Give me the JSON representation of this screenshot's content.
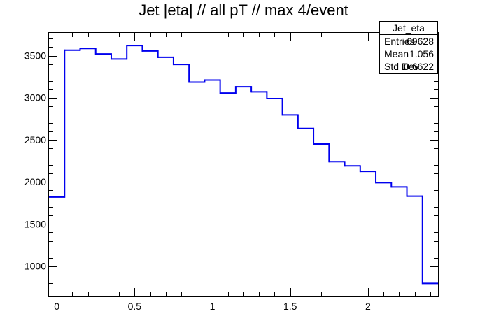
{
  "chart_data": {
    "type": "histogram",
    "title": "Jet |eta| // all pT // max 4/event",
    "xlabel": "",
    "ylabel": "",
    "xlim": [
      -0.05,
      2.45
    ],
    "ylim": [
      640,
      3770
    ],
    "bin_edges": [
      -0.05,
      0.05,
      0.15,
      0.25,
      0.35,
      0.45,
      0.55,
      0.65,
      0.75,
      0.85,
      0.95,
      1.05,
      1.15,
      1.25,
      1.35,
      1.45,
      1.55,
      1.65,
      1.75,
      1.85,
      1.95,
      2.05,
      2.15,
      2.25,
      2.35,
      2.45
    ],
    "values": [
      1820,
      3565,
      3585,
      3520,
      3460,
      3620,
      3555,
      3480,
      3395,
      3185,
      3210,
      3055,
      3130,
      3070,
      2990,
      2795,
      2635,
      2450,
      2240,
      2190,
      2125,
      1990,
      1940,
      1830,
      795
    ],
    "xticks": [
      0,
      0.5,
      1,
      1.5,
      2
    ],
    "xtick_labels": [
      "0",
      "0.5",
      "1",
      "1.5",
      "2"
    ],
    "yticks": [
      1000,
      1500,
      2000,
      2500,
      3000,
      3500
    ],
    "ytick_labels": [
      "1000",
      "1500",
      "2000",
      "2500",
      "3000",
      "3500"
    ],
    "line_color": "#0000ee",
    "grid": false,
    "stats_box": {
      "name": "Jet_eta",
      "rows": [
        {
          "label": "Entries",
          "value": "69628"
        },
        {
          "label": "Mean",
          "value": "1.056"
        },
        {
          "label": "Std Dev",
          "value": "0.6622"
        }
      ]
    }
  }
}
